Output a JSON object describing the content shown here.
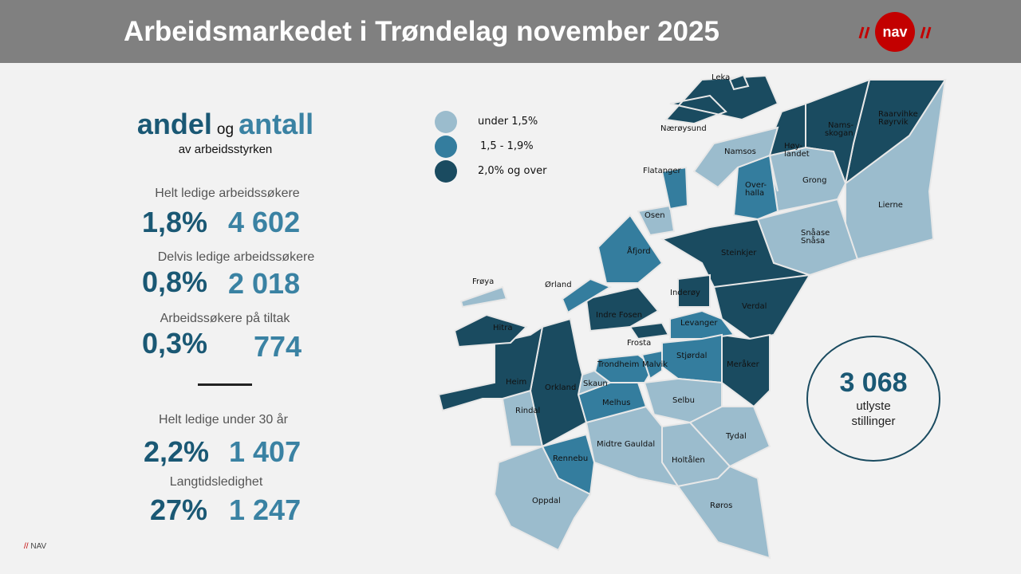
{
  "header": {
    "title": "Arbeidsmarkedet i Trøndelag november 2025",
    "logo_text": "nav"
  },
  "heading": {
    "andel": "andel",
    "og": "og",
    "antall": "antall",
    "subtitle": "av arbeidsstyrken"
  },
  "stats": [
    {
      "label": "Helt ledige arbeidssøkere",
      "percent": "1,8%",
      "count": "4 602"
    },
    {
      "label": "Delvis ledige arbeidssøkere",
      "percent": "0,8%",
      "count": "2 018"
    },
    {
      "label": "Arbeidssøkere på tiltak",
      "percent": "0,3%",
      "count": "774"
    },
    {
      "label": "Helt ledige under 30 år",
      "percent": "2,2%",
      "count": "1 407"
    },
    {
      "label": "Langtidsledighet",
      "percent": "27%",
      "count": "1 247"
    }
  ],
  "legend": [
    {
      "label": "under 1,5%",
      "color": "#9bbccd"
    },
    {
      "label": "1,5 - 1,9%",
      "color": "#347d9e"
    },
    {
      "label": "2,0% og over",
      "color": "#1a4b60"
    }
  ],
  "postings": {
    "count": "3 068",
    "line1": "utlyste",
    "line2": "stillinger"
  },
  "footer": {
    "slashes": "//",
    "text": "NAV"
  },
  "municipalities": {
    "leka": {
      "name": "Leka",
      "level": 2
    },
    "naeroysund": {
      "name": "Nærøysund",
      "level": 2
    },
    "hoylandet": {
      "name": "Høy-\nlandet",
      "l1": "Høy-",
      "l2": "landet",
      "level": 2
    },
    "namsskogan": {
      "l1": "Nams-",
      "l2": "skogan",
      "level": 2
    },
    "royrvik": {
      "l1": "Raarvihke",
      "l2": "Røyrvik",
      "level": 2
    },
    "namsos": {
      "name": "Namsos",
      "level": 0
    },
    "flatanger": {
      "name": "Flatanger",
      "level": 1
    },
    "overhalla": {
      "l1": "Over-",
      "l2": "halla",
      "level": 1
    },
    "grong": {
      "name": "Grong",
      "level": 0
    },
    "lierne": {
      "name": "Lierne",
      "level": 0
    },
    "osen": {
      "name": "Osen",
      "level": 0
    },
    "snasa": {
      "l1": "Snåase",
      "l2": "Snåsa",
      "level": 0
    },
    "afjord": {
      "name": "Åfjord",
      "level": 1
    },
    "steinkjer": {
      "name": "Steinkjer",
      "level": 2
    },
    "frøya": {
      "name": "Frøya",
      "level": 0
    },
    "orland": {
      "name": "Ørland",
      "level": 1
    },
    "inderoy": {
      "name": "Inderøy",
      "level": 2
    },
    "verdal": {
      "name": "Verdal",
      "level": 2
    },
    "indrefosen": {
      "name": "Indre Fosen",
      "level": 2
    },
    "hitra": {
      "name": "Hitra",
      "level": 2
    },
    "levanger": {
      "name": "Levanger",
      "level": 1
    },
    "frosta": {
      "name": "Frosta",
      "level": 2
    },
    "stjordal": {
      "name": "Stjørdal",
      "level": 1
    },
    "trondheim": {
      "name": "Trondheim",
      "level": 1
    },
    "malvik": {
      "name": "Malvik",
      "level": 1
    },
    "meraker": {
      "name": "Meråker",
      "level": 2
    },
    "heim": {
      "name": "Heim",
      "level": 2
    },
    "orkland": {
      "name": "Orkland",
      "level": 2
    },
    "skaun": {
      "name": "Skaun",
      "level": 0
    },
    "melhus": {
      "name": "Melhus",
      "level": 1
    },
    "selbu": {
      "name": "Selbu",
      "level": 0
    },
    "rindal": {
      "name": "Rindal",
      "level": 0
    },
    "tydal": {
      "name": "Tydal",
      "level": 0
    },
    "midtregauldal": {
      "name": "Midtre Gauldal",
      "level": 0
    },
    "holtalen": {
      "name": "Holtålen",
      "level": 0
    },
    "rennebu": {
      "name": "Rennebu",
      "level": 1
    },
    "roros": {
      "name": "Røros",
      "level": 0
    },
    "oppdal": {
      "name": "Oppdal",
      "level": 0
    }
  }
}
